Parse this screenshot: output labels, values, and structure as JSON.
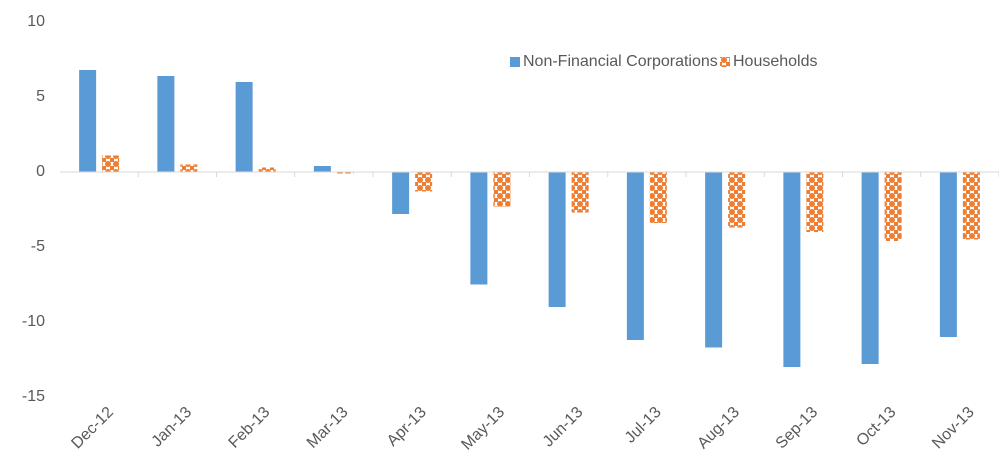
{
  "chart_data": {
    "type": "bar",
    "categories": [
      "Dec-12",
      "Jan-13",
      "Feb-13",
      "Mar-13",
      "Apr-13",
      "May-13",
      "Jun-13",
      "Jul-13",
      "Aug-13",
      "Sep-13",
      "Oct-13",
      "Nov-13"
    ],
    "series": [
      {
        "name": "Non-Financial Corporations",
        "color": "#5b9bd5",
        "values": [
          6.8,
          6.4,
          6.0,
          0.4,
          -2.8,
          -7.5,
          -9.0,
          -11.2,
          -11.7,
          -13.0,
          -12.8,
          -11.0
        ]
      },
      {
        "name": "Households",
        "color": "#ed7d31",
        "values": [
          1.1,
          0.5,
          0.3,
          -0.1,
          -1.3,
          -2.3,
          -2.7,
          -3.4,
          -3.7,
          -4.0,
          -4.6,
          -4.5
        ]
      }
    ],
    "ylim": [
      -15,
      10
    ],
    "yticks": [
      10,
      5,
      0,
      -5,
      -10,
      -15
    ],
    "grid": false,
    "legend": "top-right"
  }
}
